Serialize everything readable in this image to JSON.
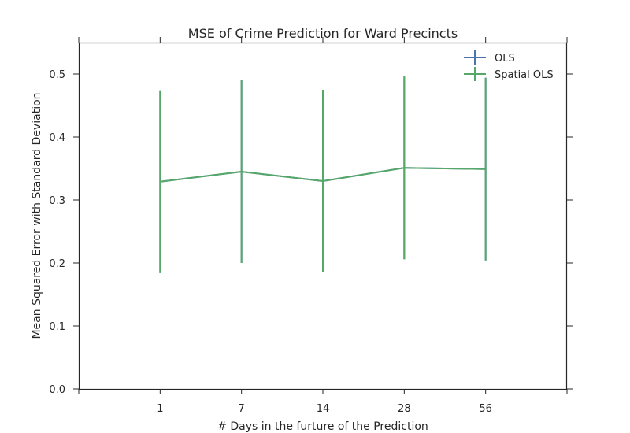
{
  "chart_data": {
    "type": "line",
    "title": "MSE of Crime Prediction for Ward Precincts",
    "xlabel": "# Days in the furture of the Prediction",
    "ylabel": "Mean Squared Error with Standard Deviation",
    "categories": [
      "1",
      "7",
      "14",
      "28",
      "56"
    ],
    "ylim": [
      0.0,
      0.55
    ],
    "yticks": [
      "0.0",
      "0.1",
      "0.2",
      "0.3",
      "0.4",
      "0.5"
    ],
    "grid": false,
    "legend_position": "top-right",
    "error_bars": true,
    "series": [
      {
        "name": "OLS",
        "color": "#4c72b0",
        "values": [
          0.329,
          0.345,
          0.33,
          0.351,
          0.349
        ],
        "error": [
          0.145,
          0.145,
          0.145,
          0.145,
          0.145
        ]
      },
      {
        "name": "Spatial OLS",
        "color": "#55a868",
        "values": [
          0.329,
          0.345,
          0.33,
          0.351,
          0.349
        ],
        "error": [
          0.145,
          0.145,
          0.145,
          0.145,
          0.145
        ]
      }
    ]
  }
}
